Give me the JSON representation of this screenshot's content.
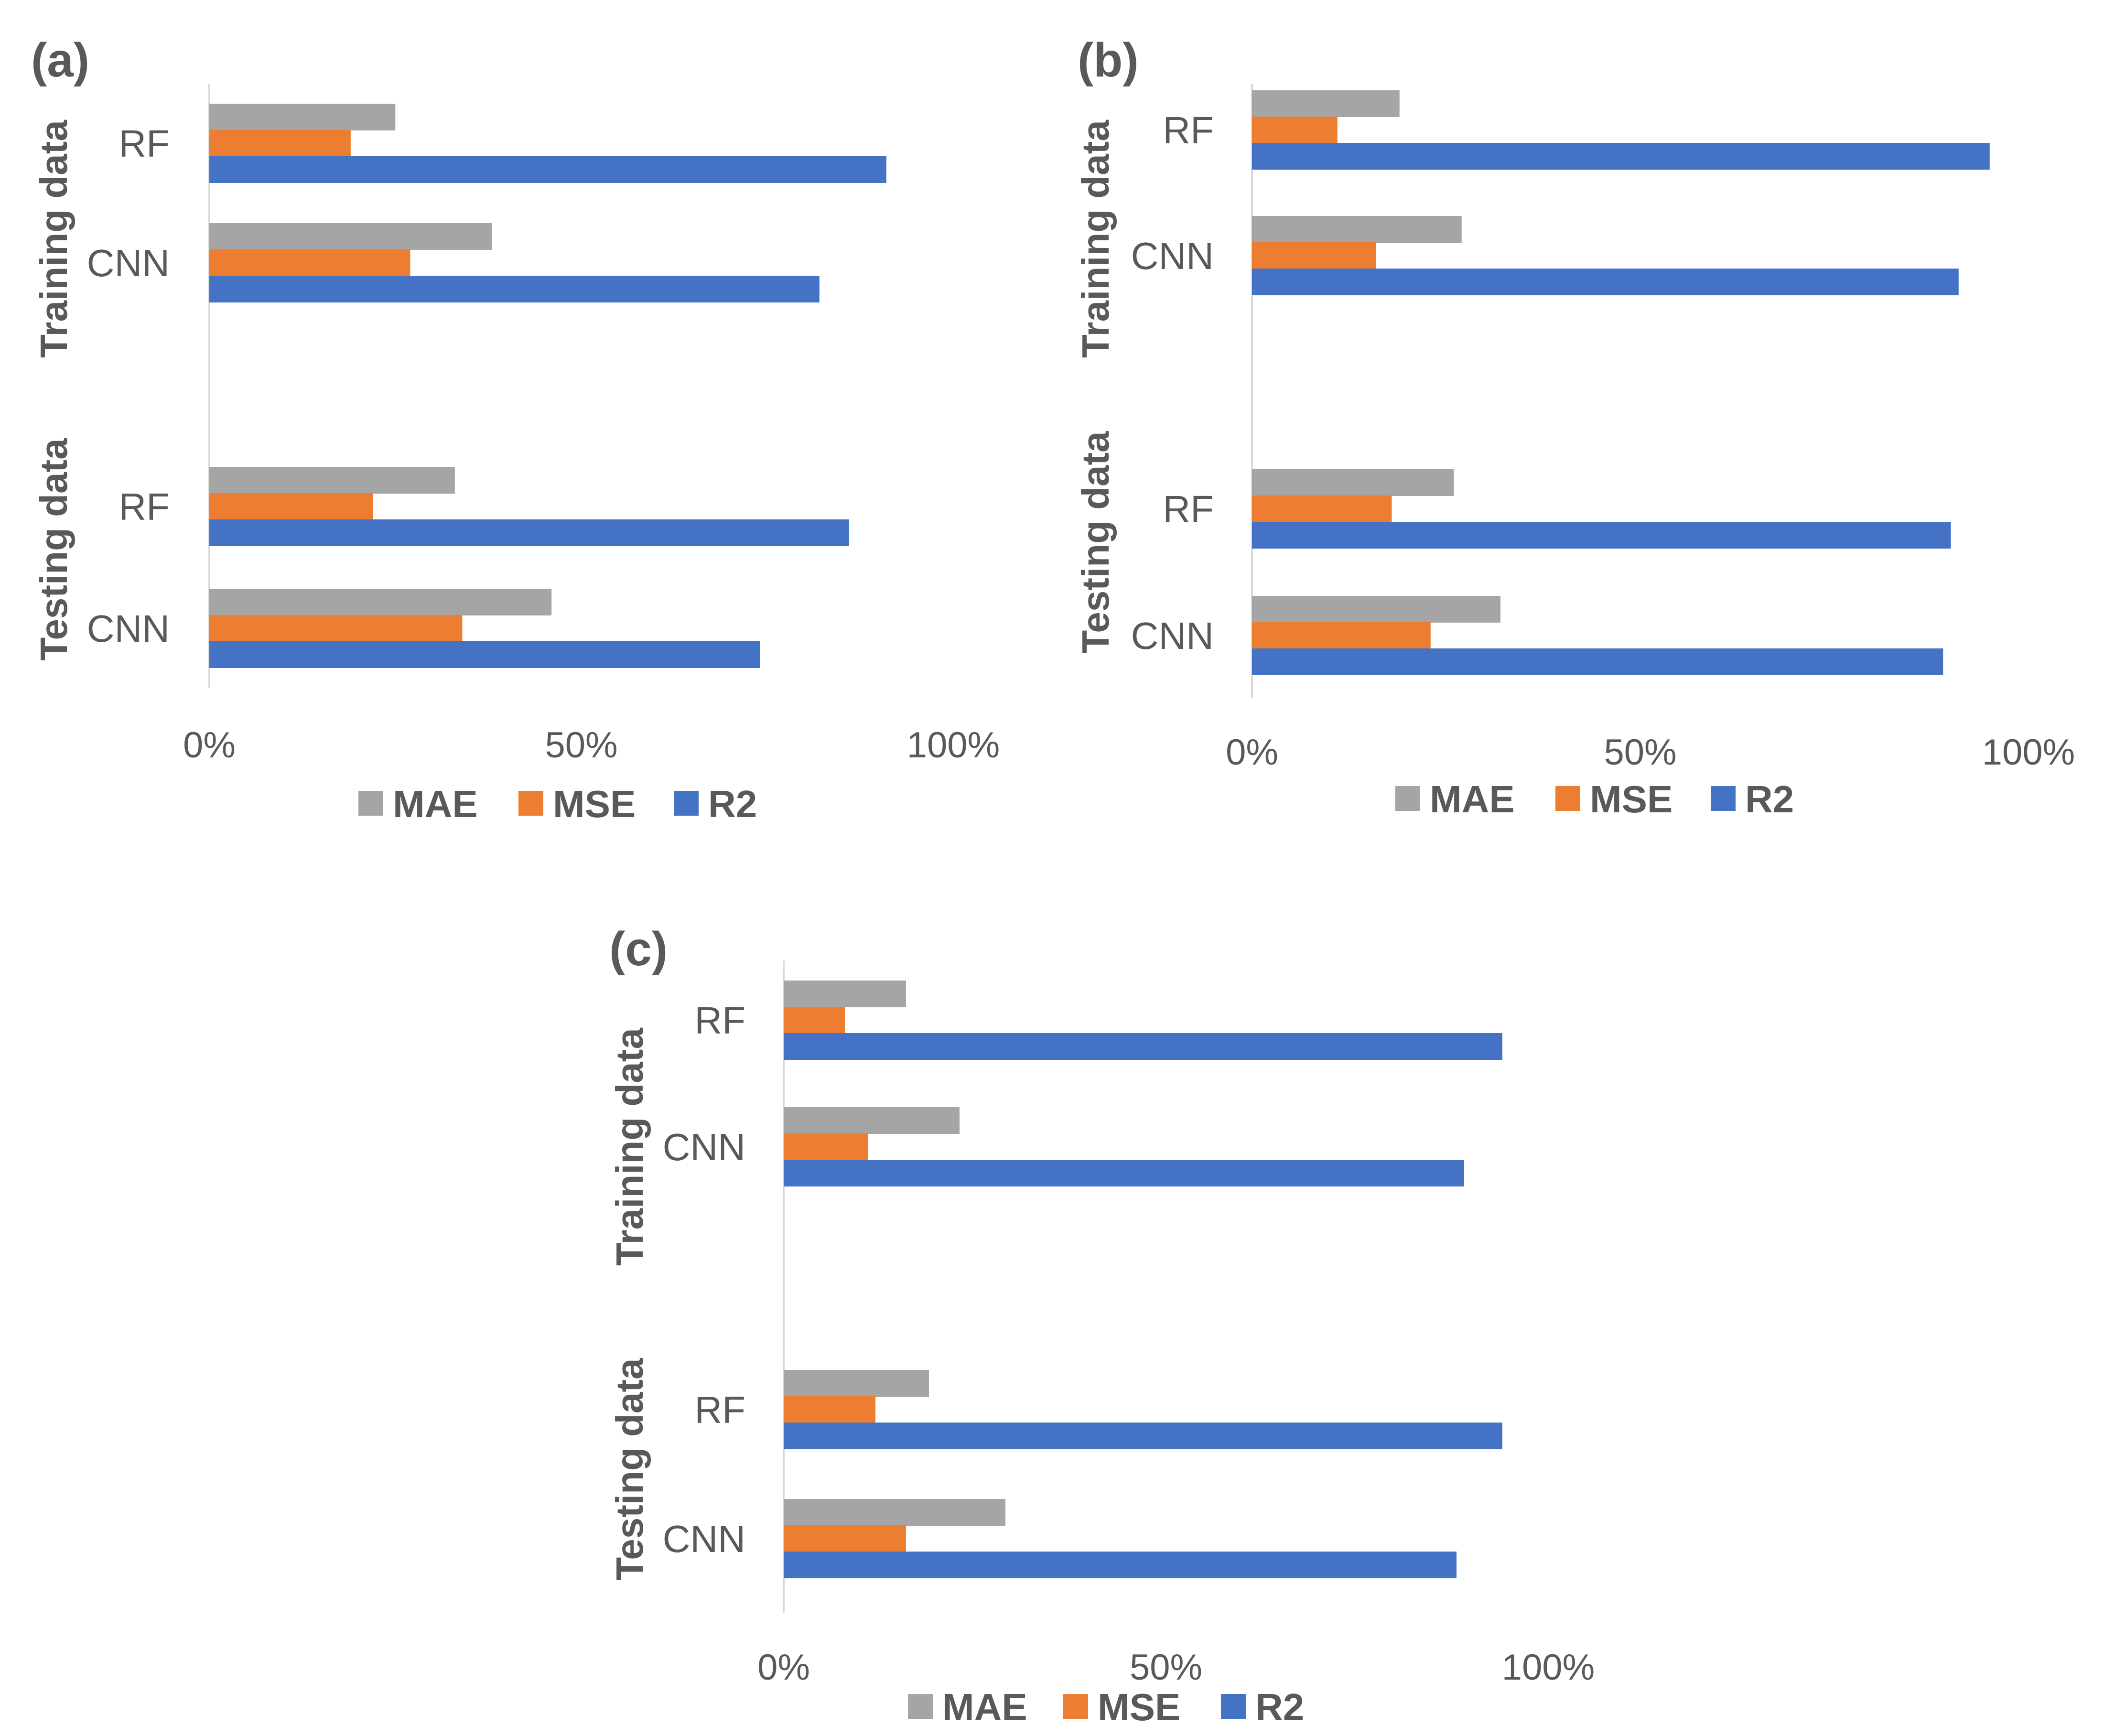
{
  "colors": {
    "MAE": "#a5a5a5",
    "MSE": "#ed7d31",
    "R2": "#4472c4",
    "text": "#595959",
    "axis": "#d9d9d9"
  },
  "chart_data": [
    {
      "panel": "(a)",
      "type": "bar",
      "orientation": "horizontal",
      "groups": [
        {
          "name": "Training data",
          "categories": [
            "RF",
            "CNN"
          ]
        },
        {
          "name": "Testing data",
          "categories": [
            "RF",
            "CNN"
          ]
        }
      ],
      "series": [
        {
          "name": "MAE",
          "values": [
            [
              25,
              38
            ],
            [
              33,
              46
            ]
          ]
        },
        {
          "name": "MSE",
          "values": [
            [
              19,
              27
            ],
            [
              22,
              34
            ]
          ]
        },
        {
          "name": "R2",
          "values": [
            [
              91,
              82
            ],
            [
              86,
              74
            ]
          ]
        }
      ],
      "xticks": [
        "0%",
        "50%",
        "100%"
      ],
      "xlim": [
        0,
        100
      ],
      "legend": "bottom"
    },
    {
      "panel": "(b)",
      "type": "bar",
      "orientation": "horizontal",
      "groups": [
        {
          "name": "Training data",
          "categories": [
            "RF",
            "CNN"
          ]
        },
        {
          "name": "Testing data",
          "categories": [
            "RF",
            "CNN"
          ]
        }
      ],
      "series": [
        {
          "name": "MAE",
          "values": [
            [
              19,
              27
            ],
            [
              26,
              32
            ]
          ]
        },
        {
          "name": "MSE",
          "values": [
            [
              11,
              16
            ],
            [
              18,
              23
            ]
          ]
        },
        {
          "name": "R2",
          "values": [
            [
              95,
              91
            ],
            [
              90,
              89
            ]
          ]
        }
      ],
      "xticks": [
        "0%",
        "50%",
        "100%"
      ],
      "xlim": [
        0,
        100
      ],
      "legend": "bottom"
    },
    {
      "panel": "(c)",
      "type": "bar",
      "orientation": "horizontal",
      "groups": [
        {
          "name": "Training data",
          "categories": [
            "RF",
            "CNN"
          ]
        },
        {
          "name": "Testing data",
          "categories": [
            "RF",
            "CNN"
          ]
        }
      ],
      "series": [
        {
          "name": "MAE",
          "values": [
            [
              16,
              23
            ],
            [
              19,
              29
            ]
          ]
        },
        {
          "name": "MSE",
          "values": [
            [
              8,
              11
            ],
            [
              12,
              16
            ]
          ]
        },
        {
          "name": "R2",
          "values": [
            [
              94,
              89
            ],
            [
              94,
              88
            ]
          ]
        }
      ],
      "xticks": [
        "0%",
        "50%",
        "100%"
      ],
      "xlim": [
        0,
        100
      ],
      "legend": "bottom"
    }
  ]
}
